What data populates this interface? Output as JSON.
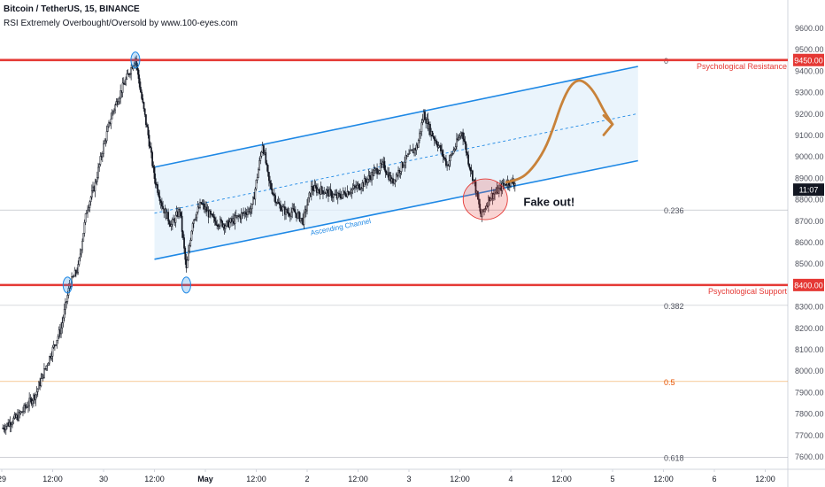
{
  "header": {
    "symbol_line": "Bitcoin / TetherUS, 15, BINANCE",
    "indicator_line": "RSI Extremely Overbought/Oversold by www.100-eyes.com"
  },
  "colors": {
    "resistance_support": "#e53935",
    "channel": "#1e88e5",
    "channel_fill": "#e3f0fb",
    "projection": "#c8823a",
    "fib_gray": "#b2b5be",
    "fib_half": "#f0a85a",
    "candles": "#131722",
    "last_price_tag": "#131722"
  },
  "chart_data": {
    "type": "line",
    "title": "",
    "xlabel": "",
    "ylabel": "",
    "ylim": [
      7540,
      9730
    ],
    "y_ticks": [
      7600,
      7700,
      7800,
      7900,
      8000,
      8100,
      8200,
      8300,
      8400,
      8500,
      8600,
      8700,
      8800,
      8900,
      9000,
      9100,
      9200,
      9300,
      9400,
      9500,
      9600
    ],
    "y_tick_labels": [
      "7600.00",
      "7700.00",
      "7800.00",
      "7900.00",
      "8000.00",
      "8100.00",
      "8200.00",
      "8300.00",
      "8400.00",
      "8500.00",
      "8600.00",
      "8700.00",
      "8800.00",
      "8900.00",
      "9000.00",
      "9100.00",
      "9200.00",
      "9300.00",
      "9400.00",
      "9500.00",
      "9600.00"
    ],
    "x_labels": [
      {
        "t": 0,
        "label": "29"
      },
      {
        "t": 12,
        "label": "12:00"
      },
      {
        "t": 24,
        "label": "30"
      },
      {
        "t": 36,
        "label": "12:00"
      },
      {
        "t": 48,
        "label": "May"
      },
      {
        "t": 60,
        "label": "12:00"
      },
      {
        "t": 72,
        "label": "2"
      },
      {
        "t": 84,
        "label": "12:00"
      },
      {
        "t": 96,
        "label": "3"
      },
      {
        "t": 108,
        "label": "12:00"
      },
      {
        "t": 120,
        "label": "4"
      },
      {
        "t": 132,
        "label": "12:00"
      },
      {
        "t": 144,
        "label": "5"
      },
      {
        "t": 156,
        "label": "12:00"
      },
      {
        "t": 168,
        "label": "6"
      },
      {
        "t": 180,
        "label": "12:00"
      }
    ],
    "price_path": [
      [
        0,
        7730
      ],
      [
        4,
        7790
      ],
      [
        8,
        7890
      ],
      [
        11,
        8050
      ],
      [
        14,
        8200
      ],
      [
        16,
        8400
      ],
      [
        18,
        8480
      ],
      [
        20,
        8750
      ],
      [
        22,
        8870
      ],
      [
        24,
        9050
      ],
      [
        26,
        9200
      ],
      [
        28,
        9300
      ],
      [
        30,
        9390
      ],
      [
        31.5,
        9460
      ],
      [
        33,
        9270
      ],
      [
        34.5,
        9100
      ],
      [
        36,
        8900
      ],
      [
        38,
        8760
      ],
      [
        40,
        8680
      ],
      [
        42,
        8750
      ],
      [
        43.5,
        8470
      ],
      [
        45,
        8700
      ],
      [
        47,
        8780
      ],
      [
        50,
        8700
      ],
      [
        53,
        8680
      ],
      [
        56,
        8720
      ],
      [
        59,
        8760
      ],
      [
        61.5,
        9060
      ],
      [
        63,
        8880
      ],
      [
        65,
        8780
      ],
      [
        67,
        8740
      ],
      [
        69,
        8740
      ],
      [
        71,
        8700
      ],
      [
        73,
        8850
      ],
      [
        76,
        8840
      ],
      [
        79,
        8810
      ],
      [
        82,
        8840
      ],
      [
        85,
        8870
      ],
      [
        88,
        8930
      ],
      [
        90,
        8960
      ],
      [
        92,
        8880
      ],
      [
        95,
        8980
      ],
      [
        98,
        9050
      ],
      [
        99.5,
        9200
      ],
      [
        101,
        9120
      ],
      [
        103,
        9050
      ],
      [
        105,
        8960
      ],
      [
        107,
        9050
      ],
      [
        108.5,
        9120
      ],
      [
        110,
        8980
      ],
      [
        111.5,
        8870
      ],
      [
        113,
        8720
      ],
      [
        115,
        8810
      ],
      [
        117,
        8840
      ],
      [
        119,
        8880
      ],
      [
        121,
        8880
      ]
    ],
    "annotations": [
      {
        "kind": "hline",
        "value": 9450,
        "color": "#e53935",
        "label": "Psychological Resistance",
        "tag": "9450.00"
      },
      {
        "kind": "hline",
        "value": 8400,
        "color": "#e53935",
        "label": "Psychological Support",
        "tag": "8400.00"
      },
      {
        "kind": "fib",
        "value": 9450,
        "label": "0"
      },
      {
        "kind": "fib",
        "value": 8750,
        "label": "0.236"
      },
      {
        "kind": "fib",
        "value": 8305,
        "label": "0.382"
      },
      {
        "kind": "fib",
        "value": 7950,
        "label": "0.5"
      },
      {
        "kind": "fib",
        "value": 7595,
        "label": "0.618"
      },
      {
        "kind": "channel",
        "label": "Ascending Channel",
        "upper": [
          [
            36,
            8950
          ],
          [
            150,
            9420
          ]
        ],
        "lower": [
          [
            36,
            8520
          ],
          [
            150,
            8980
          ]
        ]
      },
      {
        "kind": "text",
        "label": "Fake out!"
      },
      {
        "kind": "price_tag",
        "label": "11:07",
        "value": 8845
      }
    ],
    "projection": [
      [
        119,
        8880
      ],
      [
        122,
        8890
      ],
      [
        125,
        8940
      ],
      [
        128,
        9030
      ],
      [
        130,
        9130
      ],
      [
        132,
        9250
      ],
      [
        134,
        9330
      ],
      [
        136,
        9360
      ],
      [
        138,
        9340
      ],
      [
        140,
        9290
      ],
      [
        142,
        9210
      ],
      [
        144,
        9150
      ]
    ]
  }
}
